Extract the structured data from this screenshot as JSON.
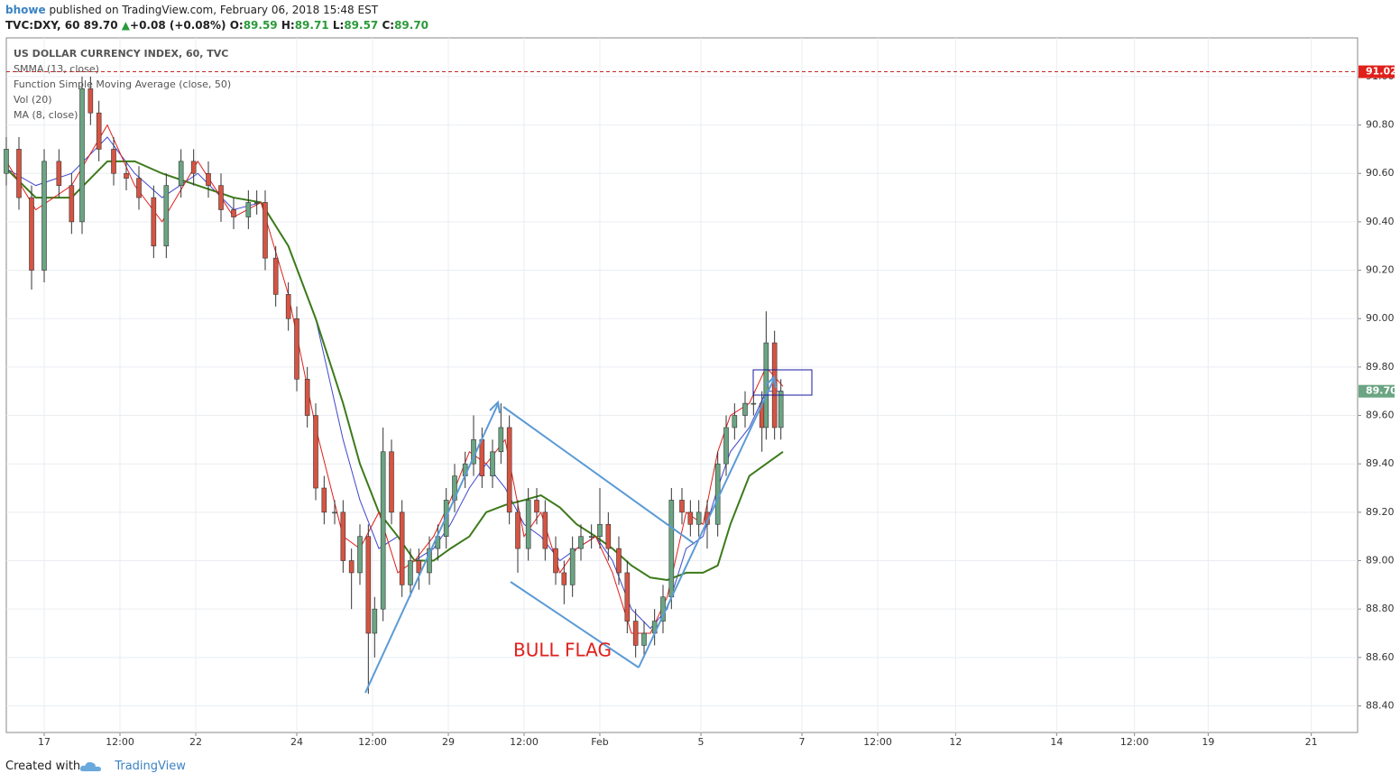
{
  "header": {
    "author": "bhowe",
    "published": "published on TradingView.com, February 06, 2018 15:48 EST",
    "symbol": "TVC:DXY, 60",
    "price": "89.70",
    "arrow": "▲",
    "change": "+0.08 (+0.08%)",
    "o_label": "O:",
    "o": "89.59",
    "h_label": "H:",
    "h": "89.71",
    "l_label": "L:",
    "l": "89.57",
    "c_label": "C:",
    "c": "89.70"
  },
  "chart_data": {
    "type": "candlestick",
    "title": "US DOLLAR CURRENCY INDEX, 60, TVC",
    "indicators": [
      "Vol (20)"
    ],
    "annotation": "BULL FLAG",
    "xlim": [
      0,
      642
    ],
    "xticks": [
      {
        "value": 18,
        "label": "17"
      },
      {
        "value": 54,
        "label": "12:00"
      },
      {
        "value": 90,
        "label": "22"
      },
      {
        "value": 138,
        "label": "24"
      },
      {
        "value": 174,
        "label": "12:00"
      },
      {
        "value": 210,
        "label": "29"
      },
      {
        "value": 246,
        "label": "12:00"
      },
      {
        "value": 282,
        "label": "Feb"
      },
      {
        "value": 330,
        "label": "5"
      },
      {
        "value": 378,
        "label": "7"
      },
      {
        "value": 414,
        "label": "12:00"
      },
      {
        "value": 451,
        "label": "12"
      },
      {
        "value": 499,
        "label": "14"
      },
      {
        "value": 536,
        "label": "12:00"
      },
      {
        "value": 571,
        "label": "19"
      },
      {
        "value": 620,
        "label": "21"
      }
    ],
    "ylim": [
      88.29,
      91.16
    ],
    "yticks": [
      {
        "value": 88.4,
        "label": "88.40"
      },
      {
        "value": 88.6,
        "label": "88.60"
      },
      {
        "value": 88.8,
        "label": "88.80"
      },
      {
        "value": 89,
        "label": "89.00"
      },
      {
        "value": 89.2,
        "label": "89.20"
      },
      {
        "value": 89.4,
        "label": "89.40"
      },
      {
        "value": 89.6,
        "label": "89.60"
      },
      {
        "value": 89.8,
        "label": "89.80"
      },
      {
        "value": 90,
        "label": "90.00"
      },
      {
        "value": 90.2,
        "label": "90.20"
      },
      {
        "value": 90.4,
        "label": "90.40"
      },
      {
        "value": 90.6,
        "label": "90.60"
      },
      {
        "value": 90.8,
        "label": "90.80"
      },
      {
        "value": 91,
        "label": "91.00"
      }
    ],
    "grid": true,
    "alert_line": 91.02,
    "last_price": {
      "value": 89.7,
      "label": "89.70"
    },
    "up_color": "#6ba583",
    "down_color": "#d75442",
    "candles": {
      "x": [
        0,
        6,
        12,
        18,
        25,
        31,
        36,
        40,
        44,
        51,
        57,
        63,
        70,
        76,
        83,
        89,
        96,
        102,
        108,
        115,
        119,
        123,
        128,
        134,
        138,
        143,
        147,
        151,
        156,
        160,
        164,
        168,
        172,
        175,
        179,
        183,
        188,
        192,
        196,
        201,
        205,
        209,
        213,
        218,
        222,
        226,
        231,
        235,
        239,
        243,
        248,
        252,
        256,
        261,
        265,
        269,
        273,
        278,
        282,
        286,
        291,
        295,
        299,
        303,
        308,
        312,
        316,
        321,
        325,
        329,
        333,
        338,
        342,
        346,
        351,
        355,
        359,
        361,
        365,
        368
      ],
      "open": [
        90.6,
        90.7,
        90.5,
        90.2,
        90.65,
        90.55,
        90.4,
        90.95,
        90.85,
        90.7,
        90.6,
        90.58,
        90.5,
        90.3,
        90.55,
        90.65,
        90.6,
        90.55,
        90.45,
        90.42,
        90.48,
        90.48,
        90.25,
        90.1,
        90.0,
        89.75,
        89.6,
        89.3,
        89.2,
        89.2,
        89.0,
        88.95,
        89.1,
        88.7,
        88.8,
        89.45,
        89.2,
        88.9,
        89.0,
        88.95,
        89.05,
        89.1,
        89.25,
        89.35,
        89.4,
        89.5,
        89.35,
        89.45,
        89.55,
        89.2,
        89.05,
        89.25,
        89.2,
        89.05,
        88.95,
        88.9,
        89.05,
        89.1,
        89.1,
        89.15,
        89.05,
        88.95,
        88.75,
        88.65,
        88.7,
        88.75,
        88.85,
        89.25,
        89.2,
        89.15,
        89.2,
        89.15,
        89.4,
        89.55,
        89.6,
        89.65,
        89.65,
        89.55,
        89.9,
        89.55
      ],
      "high": [
        90.75,
        90.75,
        90.55,
        90.7,
        90.7,
        90.6,
        91.0,
        91.0,
        90.9,
        90.75,
        90.65,
        90.63,
        90.55,
        90.6,
        90.7,
        90.7,
        90.65,
        90.6,
        90.5,
        90.53,
        90.53,
        90.53,
        90.3,
        90.15,
        90.05,
        89.8,
        89.65,
        89.35,
        89.25,
        89.25,
        89.05,
        89.15,
        89.15,
        88.85,
        89.55,
        89.5,
        89.25,
        89.05,
        89.05,
        89.1,
        89.15,
        89.3,
        89.4,
        89.45,
        89.6,
        89.55,
        89.5,
        89.65,
        89.6,
        89.25,
        89.3,
        89.3,
        89.25,
        89.1,
        89.0,
        89.1,
        89.15,
        89.15,
        89.3,
        89.2,
        89.1,
        89.0,
        88.8,
        88.75,
        88.8,
        88.9,
        89.3,
        89.3,
        89.25,
        89.25,
        89.25,
        89.45,
        89.6,
        89.65,
        89.7,
        89.7,
        89.7,
        90.03,
        89.95,
        89.75
      ],
      "low": [
        90.55,
        90.45,
        90.12,
        90.15,
        90.5,
        90.35,
        90.35,
        90.8,
        90.65,
        90.55,
        90.53,
        90.45,
        90.25,
        90.25,
        90.5,
        90.55,
        90.5,
        90.4,
        90.37,
        90.37,
        90.43,
        90.2,
        90.05,
        89.95,
        89.7,
        89.55,
        89.25,
        89.15,
        89.15,
        88.95,
        88.8,
        88.9,
        88.45,
        88.6,
        88.75,
        89.15,
        88.85,
        88.85,
        88.88,
        88.9,
        89.0,
        89.05,
        89.2,
        89.3,
        89.35,
        89.3,
        89.3,
        89.4,
        89.15,
        88.95,
        89.0,
        89.15,
        89.0,
        88.9,
        88.82,
        88.85,
        89.0,
        89.05,
        89.05,
        89.0,
        88.9,
        88.7,
        88.6,
        88.6,
        88.65,
        88.7,
        88.8,
        89.15,
        89.1,
        89.1,
        89.05,
        89.1,
        89.35,
        89.5,
        89.55,
        89.6,
        89.45,
        89.5,
        89.5,
        89.5
      ],
      "close": [
        90.7,
        90.5,
        90.2,
        90.65,
        90.55,
        90.4,
        90.95,
        90.85,
        90.7,
        90.6,
        90.58,
        90.5,
        90.3,
        90.55,
        90.65,
        90.6,
        90.55,
        90.45,
        90.42,
        90.48,
        90.48,
        90.25,
        90.1,
        90.0,
        89.75,
        89.6,
        89.3,
        89.2,
        89.2,
        89.0,
        88.95,
        89.1,
        88.7,
        88.8,
        89.45,
        89.2,
        88.9,
        89.0,
        88.95,
        89.05,
        89.1,
        89.25,
        89.35,
        89.4,
        89.5,
        89.35,
        89.45,
        89.55,
        89.2,
        89.05,
        89.25,
        89.2,
        89.05,
        88.95,
        88.9,
        89.05,
        89.1,
        89.1,
        89.15,
        89.05,
        88.95,
        88.75,
        88.65,
        88.7,
        88.75,
        88.85,
        89.25,
        89.2,
        89.15,
        89.2,
        89.15,
        89.4,
        89.55,
        89.6,
        89.65,
        89.65,
        89.55,
        89.9,
        89.55,
        89.7
      ]
    },
    "series_x": [
      0,
      14,
      31,
      48,
      61,
      74,
      91,
      108,
      121,
      134,
      147,
      160,
      168,
      177,
      186,
      194,
      203,
      211,
      220,
      228,
      237,
      246,
      254,
      263,
      271,
      280,
      288,
      297,
      306,
      314,
      323,
      331,
      338,
      344,
      353,
      361,
      369
    ],
    "series": [
      {
        "name": "SMMA (13, close)",
        "color": "#3f48cc",
        "width": 1,
        "values": [
          90.62,
          90.55,
          90.6,
          90.75,
          90.6,
          90.5,
          90.6,
          90.45,
          90.48,
          90.3,
          90.0,
          89.5,
          89.25,
          89.05,
          89.1,
          89.0,
          89.05,
          89.15,
          89.3,
          89.4,
          89.3,
          89.15,
          89.1,
          89.0,
          89.05,
          89.1,
          89.0,
          88.8,
          88.72,
          88.8,
          89.05,
          89.1,
          89.3,
          89.45,
          89.55,
          89.7,
          89.7
        ]
      },
      {
        "name": "Function Simple Moving Average (close, 50)",
        "color": "#3c7a1a",
        "width": 2,
        "values": [
          90.62,
          90.5,
          90.5,
          90.65,
          90.65,
          90.6,
          90.55,
          90.5,
          90.48,
          90.3,
          90.0,
          89.65,
          89.4,
          89.2,
          89.1,
          89.0,
          89.0,
          89.05,
          89.1,
          89.2,
          89.23,
          89.25,
          89.27,
          89.22,
          89.15,
          89.1,
          89.05,
          88.98,
          88.93,
          88.92,
          88.95,
          88.95,
          88.98,
          89.15,
          89.35,
          89.4,
          89.45
        ]
      },
      {
        "name": "MA (8, close)",
        "color": "#e0201b",
        "width": 1,
        "values": [
          90.65,
          90.45,
          90.55,
          90.8,
          90.55,
          90.4,
          90.65,
          90.42,
          90.48,
          90.1,
          89.55,
          89.1,
          89.05,
          89.2,
          88.95,
          89.0,
          89.1,
          89.25,
          89.45,
          89.4,
          89.5,
          89.1,
          89.2,
          88.95,
          89.05,
          89.1,
          88.95,
          88.7,
          88.7,
          88.85,
          89.2,
          89.15,
          89.45,
          89.6,
          89.65,
          89.8,
          89.72
        ]
      }
    ]
  },
  "footer": {
    "created": "Created with",
    "brand": "TradingView"
  }
}
